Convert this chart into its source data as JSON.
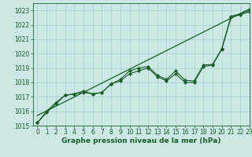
{
  "title": "Graphe pression niveau de la mer (hPa)",
  "bg_color": "#cce8e4",
  "grid_color": "#aad4d0",
  "line_color": "#1a5c2a",
  "xlim": [
    -0.5,
    23
  ],
  "ylim": [
    1015.0,
    1023.5
  ],
  "yticks": [
    1015,
    1016,
    1017,
    1018,
    1019,
    1020,
    1021,
    1022,
    1023
  ],
  "xticks": [
    0,
    1,
    2,
    3,
    4,
    5,
    6,
    7,
    8,
    9,
    10,
    11,
    12,
    13,
    14,
    15,
    16,
    17,
    18,
    19,
    20,
    21,
    22,
    23
  ],
  "line1": [
    1015.2,
    1015.9,
    1016.5,
    1017.1,
    1017.2,
    1017.3,
    1017.2,
    1017.3,
    1017.9,
    1018.1,
    1018.6,
    1018.8,
    1019.0,
    1018.4,
    1018.1,
    1018.6,
    1018.0,
    1018.0,
    1019.1,
    1019.2,
    1020.3,
    1022.5,
    1022.7,
    1022.9
  ],
  "line2": [
    1015.2,
    1016.0,
    1016.6,
    1017.1,
    1017.2,
    1017.4,
    1017.2,
    1017.3,
    1017.9,
    1018.2,
    1018.8,
    1019.0,
    1019.1,
    1018.5,
    1018.2,
    1018.8,
    1018.15,
    1018.1,
    1019.2,
    1019.25,
    1020.35,
    1022.6,
    1022.75,
    1023.0
  ],
  "trend_x": [
    0,
    23
  ],
  "trend_y": [
    1015.7,
    1023.1
  ],
  "tick_fontsize": 5.5,
  "xlabel_fontsize": 6.5
}
